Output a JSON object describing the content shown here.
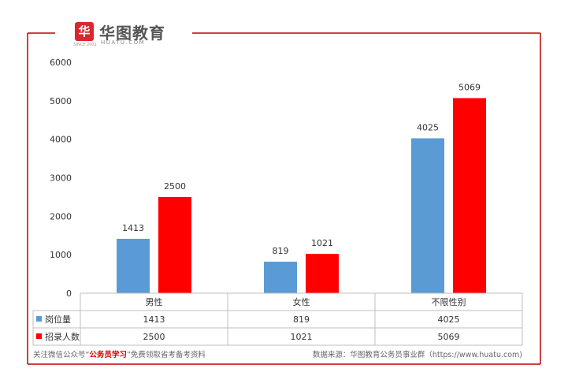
{
  "logo": {
    "name": "华图教育",
    "url": "HUATU.COM",
    "since": "SINCE 2001"
  },
  "chart_data": {
    "type": "bar",
    "categories": [
      "男性",
      "女性",
      "不限性别"
    ],
    "series": [
      {
        "name": "岗位量",
        "values": [
          1413,
          819,
          4025
        ],
        "color": "#5b9bd5"
      },
      {
        "name": "招录人数",
        "values": [
          2500,
          1021,
          5069
        ],
        "color": "#ff0000"
      }
    ],
    "ylim": [
      0,
      6000
    ],
    "yticks": [
      0,
      1000,
      2000,
      3000,
      4000,
      5000,
      6000
    ],
    "grid": false,
    "legend": "data-table"
  },
  "footer": {
    "left_prefix": "关注微信公众号“",
    "left_highlight": "公务员学习",
    "left_suffix": "”免费领取省考备考资料",
    "right": "数据来源：华图教育公务员事业群（https://www.huatu.com)"
  },
  "colors": {
    "frame": "#c00000",
    "axis": "#bfbfbf",
    "text": "#333333"
  }
}
